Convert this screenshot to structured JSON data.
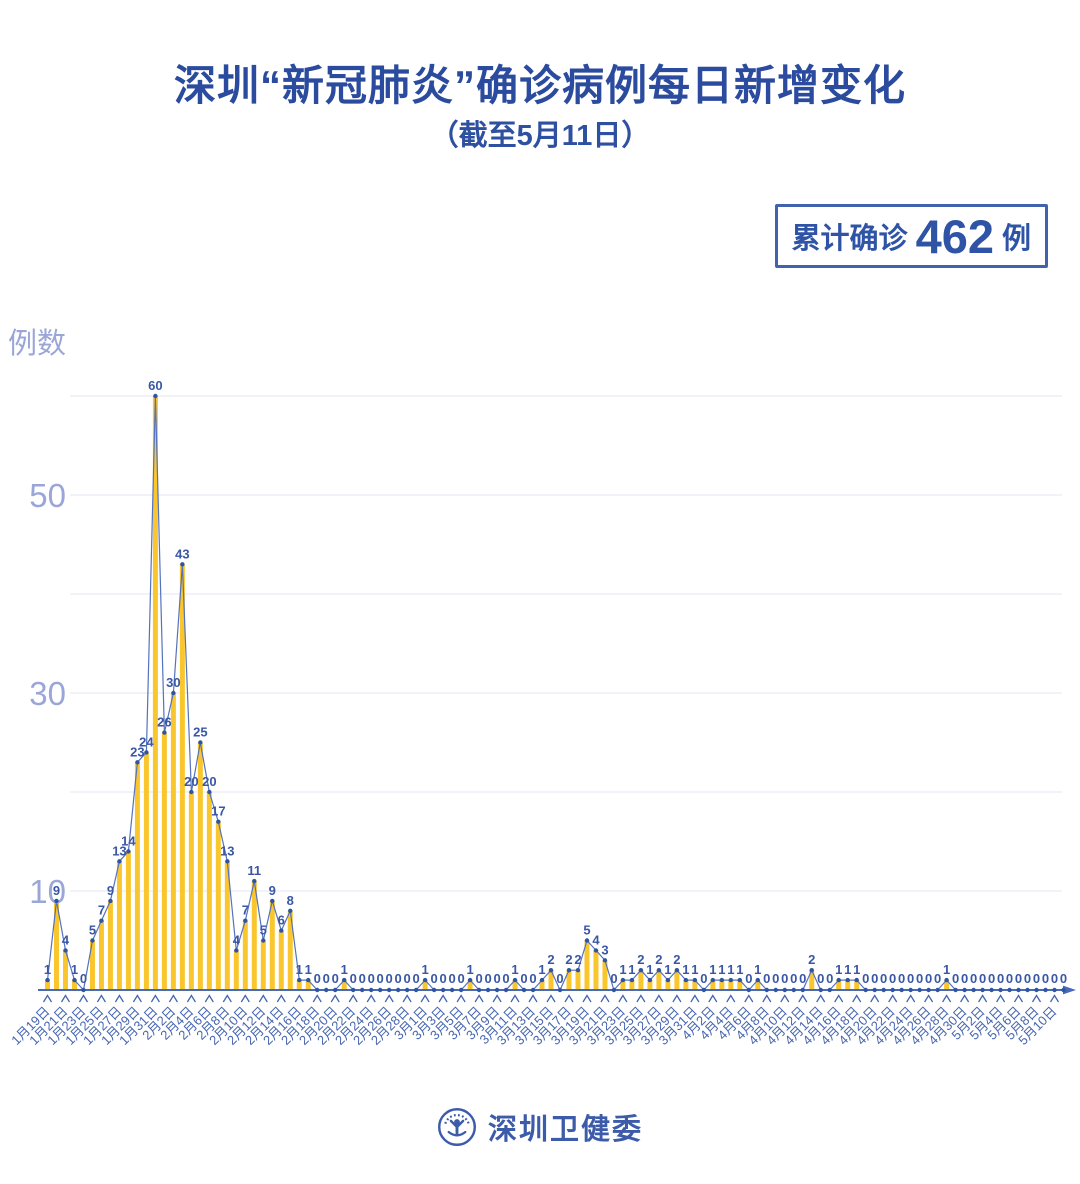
{
  "header": {
    "title": "深圳“新冠肺炎”确诊病例每日新增变化",
    "subtitle": "（截至5月11日）"
  },
  "badge": {
    "prefix": "累计确诊",
    "value": "462",
    "suffix": "例"
  },
  "y_axis_title": "例数",
  "footer": {
    "org": "深圳卫健委"
  },
  "colors": {
    "title_blue": "#2B4B9E",
    "badge_border": "#4163AE",
    "bar_yellow": "#FAC62E",
    "line_blue": "#5472BE",
    "marker_blue": "#2F55A2",
    "value_label_blue": "#3A57A5",
    "axis_blue": "#4A69B8",
    "tick_label_blue": "#4565B0",
    "y_label_lavender": "#9AA6D8",
    "gridline": "#E3E7F3"
  },
  "chart_data": {
    "type": "bar",
    "overlay": "line-with-markers",
    "title": "深圳“新冠肺炎”确诊病例每日新增变化（截至5月11日）",
    "ylabel": "例数",
    "xlabel": "",
    "ylim": [
      0,
      60
    ],
    "gridlines": [
      10,
      20,
      30,
      40,
      50,
      60
    ],
    "yticks_labeled": [
      10,
      30,
      50
    ],
    "xtick_label_interval": 2,
    "cumulative_total": 462,
    "x": [
      "1月19日",
      "1月20日",
      "1月21日",
      "1月22日",
      "1月23日",
      "1月24日",
      "1月25日",
      "1月26日",
      "1月27日",
      "1月28日",
      "1月29日",
      "1月30日",
      "1月31日",
      "2月1日",
      "2月2日",
      "2月3日",
      "2月4日",
      "2月5日",
      "2月6日",
      "2月7日",
      "2月8日",
      "2月9日",
      "2月10日",
      "2月11日",
      "2月12日",
      "2月13日",
      "2月14日",
      "2月15日",
      "2月16日",
      "2月17日",
      "2月18日",
      "2月19日",
      "2月20日",
      "2月21日",
      "2月22日",
      "2月23日",
      "2月24日",
      "2月25日",
      "2月26日",
      "2月27日",
      "2月28日",
      "2月29日",
      "3月1日",
      "3月2日",
      "3月3日",
      "3月4日",
      "3月5日",
      "3月6日",
      "3月7日",
      "3月8日",
      "3月9日",
      "3月10日",
      "3月11日",
      "3月12日",
      "3月13日",
      "3月14日",
      "3月15日",
      "3月16日",
      "3月17日",
      "3月18日",
      "3月19日",
      "3月20日",
      "3月21日",
      "3月22日",
      "3月23日",
      "3月24日",
      "3月25日",
      "3月26日",
      "3月27日",
      "3月28日",
      "3月29日",
      "3月30日",
      "3月31日",
      "4月1日",
      "4月2日",
      "4月3日",
      "4月4日",
      "4月5日",
      "4月6日",
      "4月7日",
      "4月8日",
      "4月9日",
      "4月10日",
      "4月11日",
      "4月12日",
      "4月13日",
      "4月14日",
      "4月15日",
      "4月16日",
      "4月17日",
      "4月18日",
      "4月19日",
      "4月20日",
      "4月21日",
      "4月22日",
      "4月23日",
      "4月24日",
      "4月25日",
      "4月26日",
      "4月27日",
      "4月28日",
      "4月29日",
      "4月30日",
      "5月1日",
      "5月2日",
      "5月3日",
      "5月4日",
      "5月5日",
      "5月6日",
      "5月7日",
      "5月8日",
      "5月9日",
      "5月10日",
      "5月11日"
    ],
    "values": [
      1,
      9,
      4,
      1,
      0,
      5,
      7,
      9,
      13,
      14,
      23,
      24,
      60,
      26,
      30,
      43,
      20,
      25,
      20,
      17,
      13,
      4,
      7,
      11,
      5,
      9,
      6,
      8,
      1,
      1,
      0,
      0,
      0,
      1,
      0,
      0,
      0,
      0,
      0,
      0,
      0,
      0,
      1,
      0,
      0,
      0,
      0,
      1,
      0,
      0,
      0,
      0,
      1,
      0,
      0,
      1,
      2,
      0,
      2,
      2,
      5,
      4,
      3,
      0,
      1,
      1,
      2,
      1,
      2,
      1,
      2,
      1,
      1,
      0,
      1,
      1,
      1,
      1,
      0,
      1,
      0,
      0,
      0,
      0,
      0,
      2,
      0,
      0,
      1,
      1,
      1,
      0,
      0,
      0,
      0,
      0,
      0,
      0,
      0,
      0,
      1,
      0,
      0,
      0,
      0,
      0,
      0,
      0,
      0,
      0,
      0,
      0,
      0,
      0
    ]
  }
}
